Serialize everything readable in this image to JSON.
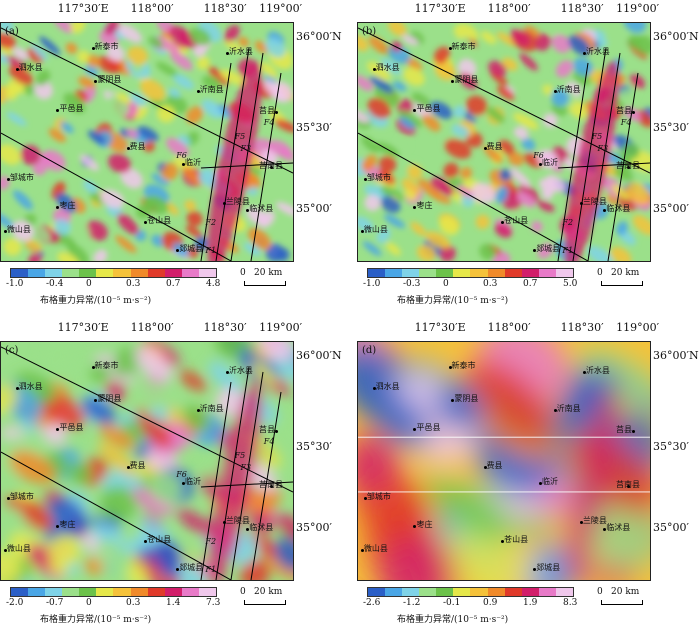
{
  "longitudes": [
    "117°30′E",
    "118°00′",
    "118°30′",
    "119°00′"
  ],
  "latitudes": [
    "36°00′N",
    "35°30′",
    "35°00′"
  ],
  "panels": [
    {
      "label": "(a)",
      "ticks": [
        "-1.0",
        "-0.4",
        "0",
        "0.3",
        "0.7",
        "4.8"
      ]
    },
    {
      "label": "(b)",
      "ticks": [
        "-1.0",
        "-0.3",
        "0",
        "0.3",
        "0.7",
        "5.0"
      ]
    },
    {
      "label": "(c)",
      "ticks": [
        "-2.0",
        "-0.7",
        "0",
        "0.3",
        "1.4",
        "7.3"
      ]
    },
    {
      "label": "(d)",
      "ticks": [
        "-2.6",
        "-1.2",
        "-0.1",
        "0.9",
        "1.9",
        "8.3"
      ]
    }
  ],
  "cities": [
    "新泰市",
    "蒙阴县",
    "沂水县",
    "泗水县",
    "沂南县",
    "平邑县",
    "莒县",
    "费县",
    "邹城市",
    "莒南县",
    "兰陵县",
    "临沭县",
    "枣庄",
    "苍山县",
    "微山县",
    "郯城县",
    "临沂"
  ],
  "faults": [
    "F1",
    "F2",
    "F3",
    "F4",
    "F5",
    "F6"
  ],
  "colorbar_unit": "布格重力异常/(10⁻⁵ m·s⁻²)",
  "scale_bar": {
    "zero": "0",
    "distance": "20 km"
  },
  "palette": [
    "#2b5fc7",
    "#4aa6e6",
    "#7fd3e8",
    "#9be08a",
    "#6cc24a",
    "#e6e84a",
    "#f5c23a",
    "#f08a2a",
    "#e03a2a",
    "#d21e6a",
    "#e87ac8",
    "#f0c8ec"
  ]
}
